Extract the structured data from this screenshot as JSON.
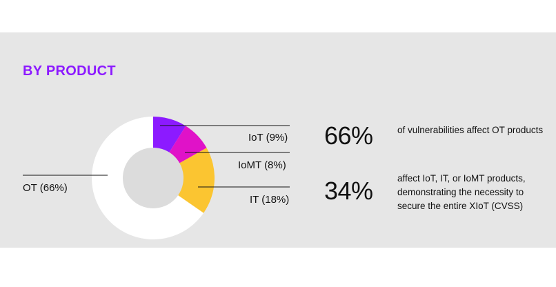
{
  "title": "BY PRODUCT",
  "colors": {
    "title": "#8c1aff",
    "background": "#e6e6e6",
    "center": "#dcdcdc"
  },
  "chart_data": {
    "type": "pie",
    "variant": "donut",
    "title": "BY PRODUCT",
    "slices": [
      {
        "label": "IoT (9%)",
        "value": 9,
        "color": "#8c1aff"
      },
      {
        "label": "IoMT (8%)",
        "value": 8,
        "color": "#e012c8"
      },
      {
        "label": "IT (18%)",
        "value": 18,
        "color": "#fbc531"
      },
      {
        "label": "OT (66%)",
        "value": 66,
        "color": "#ffffff"
      }
    ]
  },
  "stats": [
    {
      "value": "66%",
      "text": "of vulnerabilities affect OT products"
    },
    {
      "value": "34%",
      "text": "affect IoT, IT, or IoMT products, demonstrating the necessity to secure the entire XIoT (CVSS)"
    }
  ]
}
